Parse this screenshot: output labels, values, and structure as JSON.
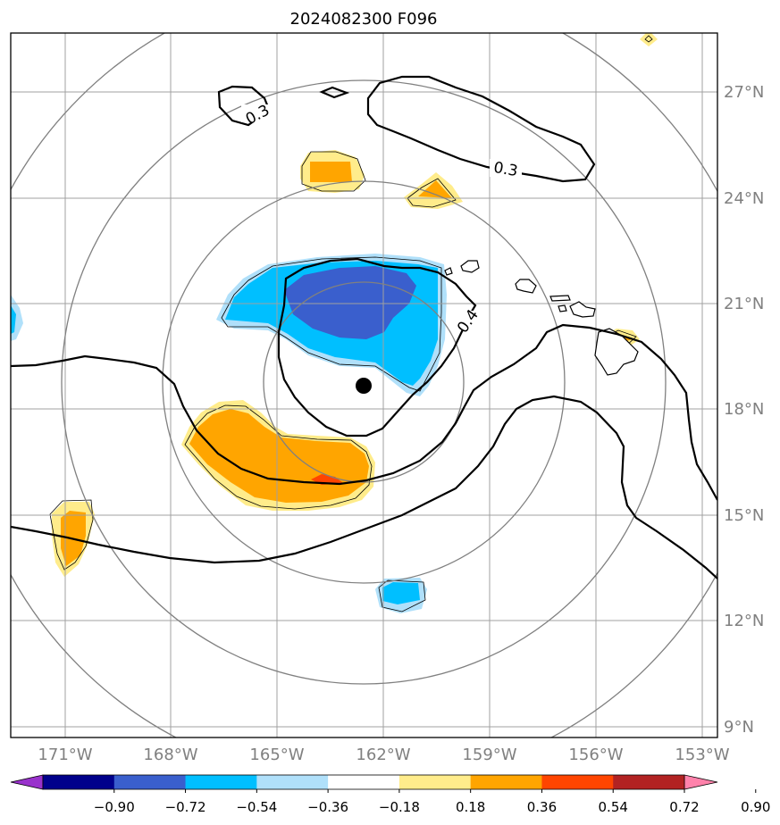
{
  "title": "2024082300 F096",
  "lon_ticks": [
    "171°W",
    "168°W",
    "165°W",
    "162°W",
    "159°W",
    "156°W",
    "153°W"
  ],
  "lat_ticks": [
    "27°N",
    "24°N",
    "21°N",
    "18°N",
    "15°N",
    "12°N",
    "9°N"
  ],
  "contour_labels": [
    "0.3",
    "0.3",
    "0.4"
  ],
  "colorbar": {
    "tick_labels": [
      "−0.90",
      "−0.72",
      "−0.54",
      "−0.36",
      "−0.18",
      "0.18",
      "0.36",
      "0.54",
      "0.72",
      "0.90"
    ],
    "colors": [
      "#9932cc",
      "#00008b",
      "#3a5fcd",
      "#00bfff",
      "#b0e0fa",
      "#ffffff",
      "#ffec8b",
      "#ffa500",
      "#ff4500",
      "#b22222",
      "#ff82ab"
    ]
  },
  "storm_center": {
    "lon": -162.4,
    "lat": 18.7
  },
  "colors": {
    "grid": "#a0a0a0",
    "range_rings": "#808080",
    "contour": "#000000",
    "coast": "#000000"
  }
}
